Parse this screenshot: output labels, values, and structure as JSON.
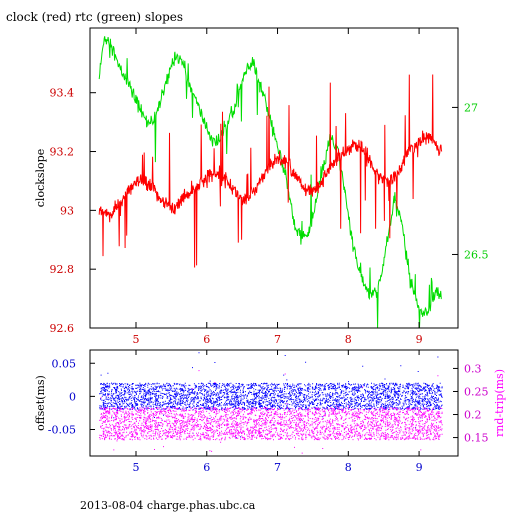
{
  "header": {
    "title": "clock (red) rtc (green) slopes",
    "footer": "2013-08-04 charge.phas.ubc.ca"
  },
  "colors": {
    "axes": "#000000",
    "clock": "#ff0000",
    "rtc": "#00dd00",
    "offset": "#0000ff",
    "rndtrip": "#ff00ff",
    "left_ticks_top": "#cc0000",
    "right_ticks_top": "#00cc00",
    "left_ticks_bottom": "#0000cc",
    "right_ticks_bottom": "#cc00cc"
  },
  "chart_data": [
    {
      "type": "line",
      "xlim": [
        4.35,
        9.55
      ],
      "xticks": [
        5,
        6,
        7,
        8,
        9
      ],
      "ylabel": "clockslope",
      "ylim": [
        92.6,
        93.62
      ],
      "yticks": [
        92.6,
        92.8,
        93,
        93.2,
        93.4
      ],
      "ytick_labels": [
        "92.6",
        "92.8",
        "93",
        "93.2",
        "93.4"
      ],
      "y2lim": [
        26.25,
        27.27
      ],
      "y2ticks": [
        26.5,
        27
      ],
      "y2tick_labels": [
        "26.5",
        "27"
      ],
      "series": [
        {
          "name": "clock",
          "axis": "left",
          "x": [
            4.48,
            4.55,
            4.65,
            4.75,
            4.85,
            4.95,
            5.05,
            5.15,
            5.25,
            5.35,
            5.45,
            5.55,
            5.65,
            5.75,
            5.85,
            5.95,
            6.05,
            6.15,
            6.25,
            6.35,
            6.45,
            6.55,
            6.65,
            6.75,
            6.85,
            6.95,
            7.05,
            7.15,
            7.25,
            7.35,
            7.45,
            7.55,
            7.65,
            7.75,
            7.85,
            7.95,
            8.05,
            8.15,
            8.25,
            8.35,
            8.45,
            8.55,
            8.65,
            8.75,
            8.85,
            8.95,
            9.05,
            9.15,
            9.25,
            9.32
          ],
          "y": [
            92.99,
            93.0,
            92.98,
            93.02,
            93.05,
            93.08,
            93.1,
            93.09,
            93.07,
            93.04,
            93.02,
            93.0,
            93.04,
            93.06,
            93.08,
            93.1,
            93.12,
            93.13,
            93.11,
            93.08,
            93.05,
            93.03,
            93.06,
            93.1,
            93.14,
            93.17,
            93.18,
            93.16,
            93.12,
            93.08,
            93.06,
            93.07,
            93.11,
            93.15,
            93.18,
            93.2,
            93.22,
            93.22,
            93.19,
            93.15,
            93.12,
            93.1,
            93.11,
            93.15,
            93.2,
            93.22,
            93.24,
            93.25,
            93.22,
            93.2
          ]
        },
        {
          "name": "rtc",
          "axis": "right",
          "x": [
            4.48,
            4.55,
            4.65,
            4.75,
            4.85,
            4.95,
            5.05,
            5.15,
            5.25,
            5.35,
            5.45,
            5.55,
            5.65,
            5.75,
            5.85,
            5.95,
            6.05,
            6.15,
            6.25,
            6.35,
            6.45,
            6.55,
            6.65,
            6.75,
            6.85,
            6.95,
            7.05,
            7.15,
            7.25,
            7.35,
            7.45,
            7.55,
            7.65,
            7.75,
            7.85,
            7.95,
            8.05,
            8.15,
            8.25,
            8.35,
            8.45,
            8.55,
            8.65,
            8.75,
            8.85,
            8.95,
            9.05,
            9.15,
            9.25,
            9.32
          ],
          "y": [
            27.1,
            27.24,
            27.22,
            27.14,
            27.1,
            27.05,
            27.0,
            26.95,
            26.96,
            27.02,
            27.1,
            27.18,
            27.16,
            27.08,
            27.02,
            26.96,
            26.9,
            26.88,
            26.92,
            26.98,
            27.05,
            27.12,
            27.15,
            27.08,
            27.0,
            26.92,
            26.82,
            26.72,
            26.6,
            26.55,
            26.58,
            26.68,
            26.8,
            26.9,
            26.85,
            26.72,
            26.55,
            26.45,
            26.38,
            26.36,
            26.4,
            26.55,
            26.68,
            26.62,
            26.45,
            26.35,
            26.3,
            26.32,
            26.38,
            26.35
          ]
        }
      ]
    },
    {
      "type": "scatter",
      "xlim": [
        4.35,
        9.55
      ],
      "xticks": [
        5,
        6,
        7,
        8,
        9
      ],
      "ylabel": "offset(ms)",
      "ylim": [
        -0.09,
        0.07
      ],
      "yticks": [
        -0.05,
        0,
        0.05
      ],
      "ytick_labels": [
        "-0.05",
        "0",
        "0.05"
      ],
      "y2label": "rnd-trip(ms)",
      "y2lim": [
        0.11,
        0.34
      ],
      "y2ticks": [
        0.15,
        0.2,
        0.25,
        0.3
      ],
      "y2tick_labels": [
        "0.15",
        "0.2",
        "0.25",
        "0.3"
      ],
      "series": [
        {
          "name": "offset",
          "axis": "left",
          "x_range": [
            4.48,
            9.32
          ],
          "y_center": 0.0,
          "y_spread": 0.02
        },
        {
          "name": "rnd-trip",
          "axis": "right",
          "x_range": [
            4.48,
            9.32
          ],
          "y_center": 0.18,
          "y_spread": 0.035
        }
      ]
    }
  ]
}
